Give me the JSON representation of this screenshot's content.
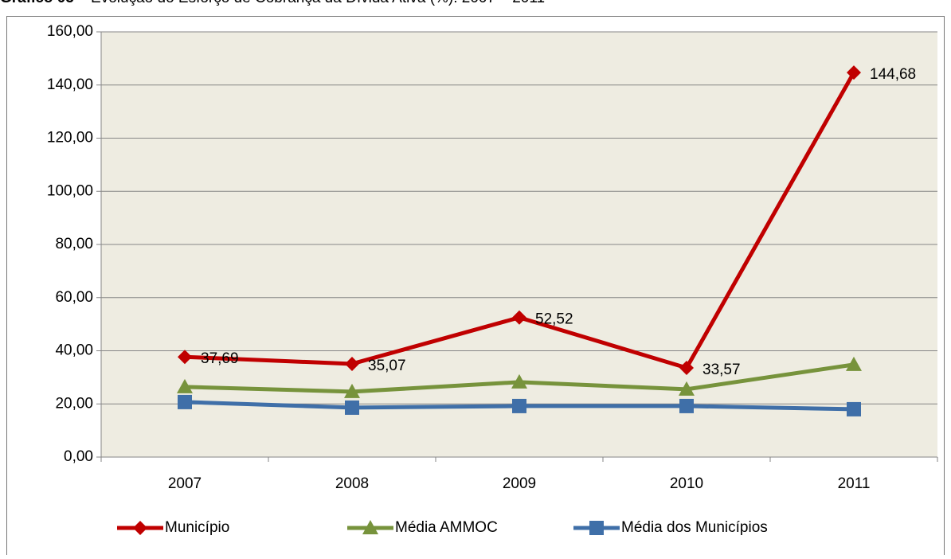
{
  "chart_data": {
    "type": "line",
    "label": "Gráfico 05",
    "title": " – Evolução do Esforço de Cobrança da Dívida Ativa (%): 2007 – 2011",
    "categories": [
      "2007",
      "2008",
      "2009",
      "2010",
      "2011"
    ],
    "series": [
      {
        "name": "Município",
        "color": "#c00000",
        "marker": "diamond",
        "values": [
          37.69,
          35.07,
          52.52,
          33.57,
          144.68
        ],
        "value_labels": [
          "37,69",
          "35,07",
          "52,52",
          "33,57",
          "144,68"
        ]
      },
      {
        "name": "Média AMMOC",
        "color": "#77933c",
        "marker": "triangle",
        "values": [
          26.4,
          24.6,
          28.2,
          25.5,
          34.8
        ]
      },
      {
        "name": "Média dos Municípios",
        "color": "#3f6fa8",
        "marker": "square",
        "values": [
          20.7,
          18.6,
          19.2,
          19.2,
          18.0
        ]
      }
    ],
    "ylim": [
      0,
      160
    ],
    "yticks": [
      {
        "value": 0,
        "label": "0,00"
      },
      {
        "value": 20,
        "label": "20,00"
      },
      {
        "value": 40,
        "label": "40,00"
      },
      {
        "value": 60,
        "label": "60,00"
      },
      {
        "value": 80,
        "label": "80,00"
      },
      {
        "value": 100,
        "label": "100,00"
      },
      {
        "value": 120,
        "label": "120,00"
      },
      {
        "value": 140,
        "label": "140,00"
      },
      {
        "value": 160,
        "label": "160,00"
      }
    ],
    "grid": true,
    "legend": "bottom"
  }
}
